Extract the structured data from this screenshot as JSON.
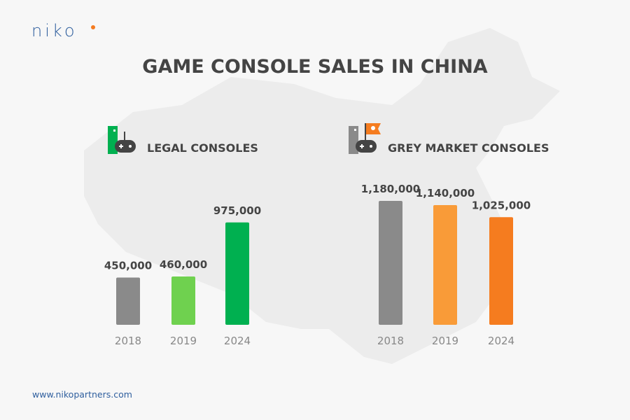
{
  "brand": {
    "logo": "niko",
    "url": "www.nikopartners.com",
    "accent": "#f47b20",
    "blue": "#2f5f9e"
  },
  "title": "GAME CONSOLE SALES IN CHINA",
  "chart_data": [
    {
      "type": "bar",
      "title": "LEGAL CONSOLES",
      "icon": "console-controller-icon",
      "categories": [
        "2018",
        "2019",
        "2024"
      ],
      "values": [
        450000,
        460000,
        975000
      ],
      "data_labels": [
        "450,000",
        "460,000",
        "975,000"
      ],
      "colors": [
        "#8a8a8a",
        "#6fd14f",
        "#00b050"
      ],
      "ylim": [
        0,
        1200000
      ]
    },
    {
      "type": "bar",
      "title": "GREY MARKET CONSOLES",
      "icon": "pirate-flag-console-icon",
      "categories": [
        "2018",
        "2019",
        "2024"
      ],
      "values": [
        1180000,
        1140000,
        1025000
      ],
      "data_labels": [
        "1,180,000",
        "1,140,000",
        "1,025,000"
      ],
      "colors": [
        "#8a8a8a",
        "#f99b38",
        "#f57c1f"
      ],
      "ylim": [
        0,
        1200000
      ]
    }
  ]
}
